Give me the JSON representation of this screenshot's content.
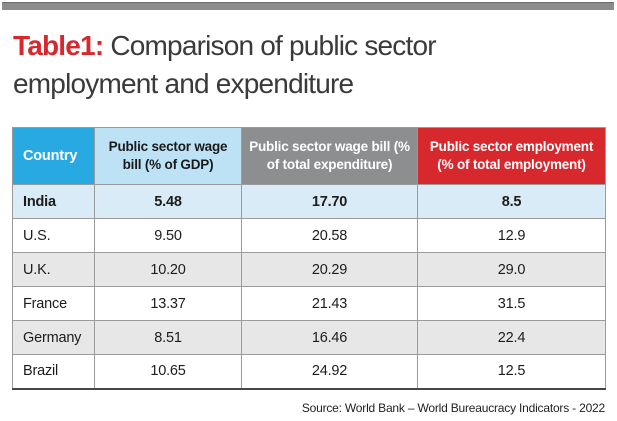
{
  "page": {
    "title_prefix": "Table1:",
    "title_rest": " Comparison of public sector employment and expenditure",
    "source": "Source: World Bank – World Bureaucracy Indicators - 2022"
  },
  "colors": {
    "accent-red": "#d7282e",
    "country-blue": "#29a9e1",
    "light-blue": "#bde2f5",
    "header-gray": "#8d8e90",
    "india-row-blue": "#d9ebf7",
    "alt-row-gray": "#e7e7e8",
    "top-bar-gray": "#8c8c8c"
  },
  "table": {
    "headers": {
      "country": "Country",
      "wage_bill_gdp": "Public sector wage bill (% of GDP)",
      "wage_bill_expenditure": "Public sector wage bill (% of total expenditure)",
      "employment": "Public sector employment (% of total employment)"
    },
    "rows": [
      {
        "country": "India",
        "wage_bill_gdp": "5.48",
        "wage_bill_expenditure": "17.70",
        "employment": "8.5"
      },
      {
        "country": "U.S.",
        "wage_bill_gdp": "9.50",
        "wage_bill_expenditure": "20.58",
        "employment": "12.9"
      },
      {
        "country": "U.K.",
        "wage_bill_gdp": "10.20",
        "wage_bill_expenditure": "20.29",
        "employment": "29.0"
      },
      {
        "country": "France",
        "wage_bill_gdp": "13.37",
        "wage_bill_expenditure": "21.43",
        "employment": "31.5"
      },
      {
        "country": "Germany",
        "wage_bill_gdp": "8.51",
        "wage_bill_expenditure": "16.46",
        "employment": "22.4"
      },
      {
        "country": "Brazil",
        "wage_bill_gdp": "10.65",
        "wage_bill_expenditure": "24.92",
        "employment": "12.5"
      }
    ]
  },
  "chart_data": {
    "type": "table",
    "title": "Table1: Comparison of public sector employment and expenditure",
    "columns": [
      "Country",
      "Public sector wage bill (% of GDP)",
      "Public sector wage bill (% of total expenditure)",
      "Public sector employment (% of total employment)"
    ],
    "rows": [
      [
        "India",
        5.48,
        17.7,
        8.5
      ],
      [
        "U.S.",
        9.5,
        20.58,
        12.9
      ],
      [
        "U.K.",
        10.2,
        20.29,
        29.0
      ],
      [
        "France",
        13.37,
        21.43,
        31.5
      ],
      [
        "Germany",
        8.51,
        16.46,
        22.4
      ],
      [
        "Brazil",
        10.65,
        24.92,
        12.5
      ]
    ],
    "source": "Source: World Bank – World Bureaucracy Indicators - 2022",
    "highlighted_row": "India"
  }
}
